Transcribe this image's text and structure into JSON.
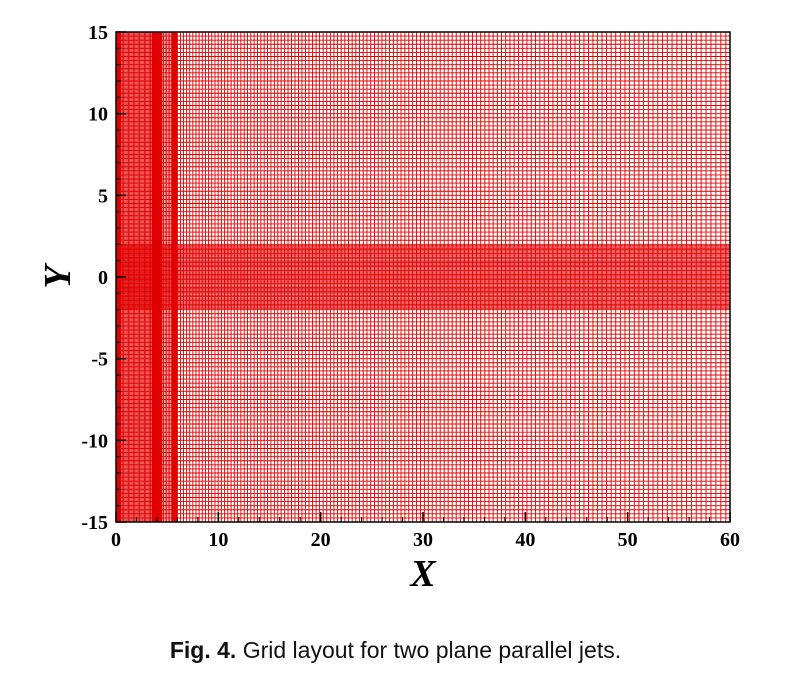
{
  "chart_data": {
    "type": "scatter",
    "description_role": "mesh",
    "xlabel": "X",
    "ylabel": "Y",
    "xlim": [
      0,
      60
    ],
    "ylim": [
      -15,
      15
    ],
    "x_ticks": [
      0,
      10,
      20,
      30,
      40,
      50,
      60
    ],
    "x_tick_labels": [
      "0",
      "10",
      "20",
      "30",
      "40",
      "50",
      "60"
    ],
    "y_ticks": [
      15,
      10,
      5,
      0,
      -5,
      -10,
      -15
    ],
    "y_tick_labels": [
      "15",
      "10",
      "5",
      "0",
      "-5",
      "-10",
      "-15"
    ],
    "grid_color": "#e00000",
    "x_spacing": [
      {
        "from": 0,
        "to": 0.5,
        "step": 0.03
      },
      {
        "from": 0.5,
        "to": 3.5,
        "step": 0.12
      },
      {
        "from": 3.5,
        "to": 4.5,
        "step": 0.05
      },
      {
        "from": 4.5,
        "to": 5.5,
        "step": 0.15
      },
      {
        "from": 5.5,
        "to": 6.0,
        "step": 0.05
      },
      {
        "from": 6.0,
        "to": 60,
        "step": 0.3,
        "growth": 1.0035
      }
    ],
    "y_spacing": [
      {
        "from": 0,
        "to": 2.0,
        "step": 0.08
      },
      {
        "from": 2.0,
        "to": 15,
        "step": 0.25,
        "growth": 1.0
      }
    ]
  },
  "caption": {
    "label": "Fig. 4.",
    "text": "Grid layout for two plane parallel jets."
  }
}
